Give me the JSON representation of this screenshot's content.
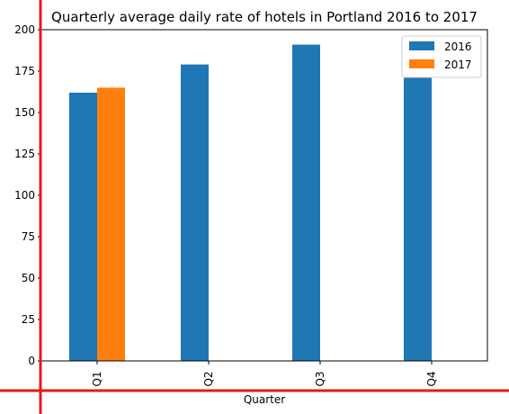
{
  "chart_data": {
    "type": "bar",
    "title": "Quarterly average daily rate of hotels in Portland 2016 to 2017",
    "xlabel": "Quarter",
    "ylabel": "",
    "categories": [
      "Q1",
      "Q2",
      "Q3",
      "Q4"
    ],
    "series": [
      {
        "name": "2016",
        "values": [
          162,
          179,
          191,
          171
        ],
        "color": "#1f77b4"
      },
      {
        "name": "2017",
        "values": [
          165,
          null,
          null,
          null
        ],
        "color": "#ff7f0e"
      }
    ],
    "ylim": [
      0,
      200
    ],
    "yticks": [
      0,
      25,
      50,
      75,
      100,
      125,
      150,
      175,
      200
    ],
    "grid": false,
    "legend_position": "top-right"
  },
  "overlay": {
    "guide_color": "#e01b1b"
  }
}
